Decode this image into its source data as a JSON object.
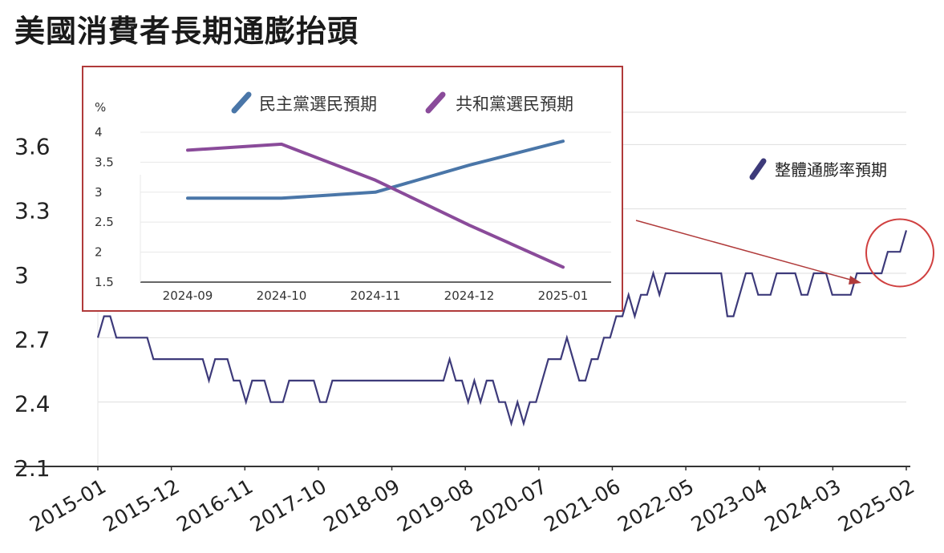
{
  "title": "美國消費者長期通膨抬頭",
  "colors": {
    "overall": "#3d3a7a",
    "democrat": "#4a76a8",
    "republican": "#8a4b9a",
    "inset_border": "#b03a3a",
    "circle": "#d04040",
    "arrow": "#b03a3a",
    "grid": "#dedede"
  },
  "chart_data": [
    {
      "type": "line",
      "title": "",
      "xlabel": "",
      "ylabel": "",
      "ylim": [
        2.1,
        3.9
      ],
      "yticks": [
        2.1,
        2.4,
        2.7,
        3,
        3.3,
        3.6
      ],
      "ytick_labels": [
        "2.1",
        "2.4",
        "2.7",
        "3",
        "3.3",
        "3.6"
      ],
      "xtick_labels": [
        "2015-01",
        "2015-12",
        "2016-11",
        "2017-10",
        "2018-09",
        "2019-08",
        "2020-07",
        "2021-06",
        "2022-05",
        "2023-04",
        "2024-03",
        "2025-02"
      ],
      "legend": {
        "position": "top-right",
        "entries": [
          "整體通膨率預期"
        ]
      },
      "grid": true,
      "series": [
        {
          "name": "整體通膨率預期",
          "values": [
            2.7,
            2.8,
            2.8,
            2.7,
            2.7,
            2.7,
            2.7,
            2.7,
            2.7,
            2.6,
            2.6,
            2.6,
            2.6,
            2.6,
            2.6,
            2.6,
            2.6,
            2.6,
            2.5,
            2.6,
            2.6,
            2.6,
            2.5,
            2.5,
            2.4,
            2.5,
            2.5,
            2.5,
            2.4,
            2.4,
            2.4,
            2.5,
            2.5,
            2.5,
            2.5,
            2.5,
            2.4,
            2.4,
            2.5,
            2.5,
            2.5,
            2.5,
            2.5,
            2.5,
            2.5,
            2.5,
            2.5,
            2.5,
            2.5,
            2.5,
            2.5,
            2.5,
            2.5,
            2.5,
            2.5,
            2.5,
            2.5,
            2.6,
            2.5,
            2.5,
            2.4,
            2.5,
            2.4,
            2.5,
            2.5,
            2.4,
            2.4,
            2.3,
            2.4,
            2.3,
            2.4,
            2.4,
            2.5,
            2.6,
            2.6,
            2.6,
            2.7,
            2.6,
            2.5,
            2.5,
            2.6,
            2.6,
            2.7,
            2.7,
            2.8,
            2.8,
            2.9,
            2.8,
            2.9,
            2.9,
            3.0,
            2.9,
            3.0,
            3.0,
            3.0,
            3.0,
            3.0,
            3.0,
            3.0,
            3.0,
            3.0,
            3.0,
            2.8,
            2.8,
            2.9,
            3.0,
            3.0,
            2.9,
            2.9,
            2.9,
            3.0,
            3.0,
            3.0,
            3.0,
            2.9,
            2.9,
            3.0,
            3.0,
            3.0,
            2.9,
            2.9,
            2.9,
            2.9,
            3.0,
            3.0,
            3.0,
            3.0,
            3.0,
            3.1,
            3.1,
            3.1,
            3.2
          ]
        }
      ]
    },
    {
      "type": "line",
      "title": "",
      "unit_label": "%",
      "ylim": [
        1.5,
        4.2
      ],
      "yticks": [
        1.5,
        2,
        2.5,
        3,
        3.5,
        4
      ],
      "ytick_labels": [
        "1.5",
        "2",
        "2.5",
        "3",
        "3.5",
        "4"
      ],
      "categories": [
        "2024-09",
        "2024-10",
        "2024-11",
        "2024-12",
        "2025-01"
      ],
      "legend": {
        "position": "top",
        "entries": [
          "民主黨選民預期",
          "共和黨選民預期"
        ]
      },
      "grid": true,
      "series": [
        {
          "name": "民主黨選民預期",
          "values": [
            2.9,
            2.9,
            3.0,
            3.45,
            3.85
          ]
        },
        {
          "name": "共和黨選民預期",
          "values": [
            3.7,
            3.8,
            3.2,
            2.45,
            1.75
          ]
        }
      ]
    }
  ]
}
